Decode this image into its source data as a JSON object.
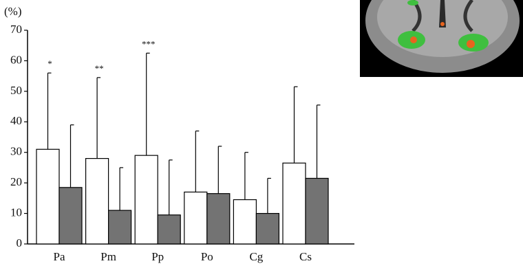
{
  "chart_data": {
    "type": "bar",
    "y_label": "(%)",
    "categories": [
      "Pa",
      "Pm",
      "Pp",
      "Po",
      "Cg",
      "Cs"
    ],
    "series": [
      {
        "color": "#ffffff",
        "values": [
          31,
          28,
          29,
          17,
          14.5,
          26.5
        ],
        "errors": [
          25,
          26.5,
          33.5,
          20,
          15.5,
          25
        ]
      },
      {
        "color": "#737373",
        "values": [
          18.5,
          11,
          9.5,
          16.5,
          10,
          21.5
        ],
        "errors": [
          20.5,
          14,
          18,
          15.5,
          11.5,
          24
        ]
      }
    ],
    "annotations": [
      "*",
      "**",
      "***",
      null,
      null,
      null
    ],
    "ylim": [
      0,
      70
    ],
    "yticks": [
      0,
      10,
      20,
      30,
      40,
      50,
      60,
      70
    ]
  }
}
